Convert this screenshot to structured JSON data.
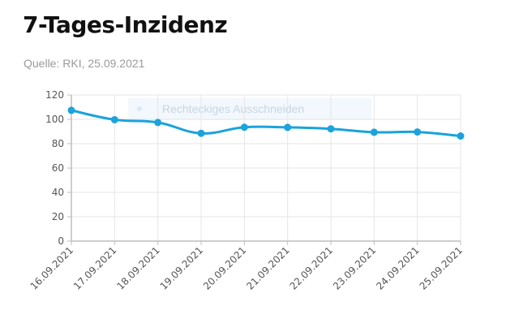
{
  "header": {
    "title": "7-Tages-Inzidenz",
    "source": "Quelle: RKI, 25.09.2021"
  },
  "overlay": {
    "label": "Rechteckiges Ausschneiden"
  },
  "chart_data": {
    "type": "line",
    "categories": [
      "16.09.2021",
      "17.09.2021",
      "18.09.2021",
      "19.09.2021",
      "20.09.2021",
      "21.09.2021",
      "22.09.2021",
      "23.09.2021",
      "24.09.2021",
      "25.09.2021"
    ],
    "values": [
      107.4,
      99.7,
      97.4,
      88.5,
      93.5,
      93.4,
      92.2,
      89.4,
      89.6,
      86.3
    ],
    "title": "7-Tages-Inzidenz",
    "xlabel": "",
    "ylabel": "",
    "ylim": [
      0,
      120
    ],
    "yticks": [
      0,
      20,
      40,
      60,
      80,
      100,
      120
    ],
    "grid": true,
    "line_color": "#1aa3dc"
  }
}
